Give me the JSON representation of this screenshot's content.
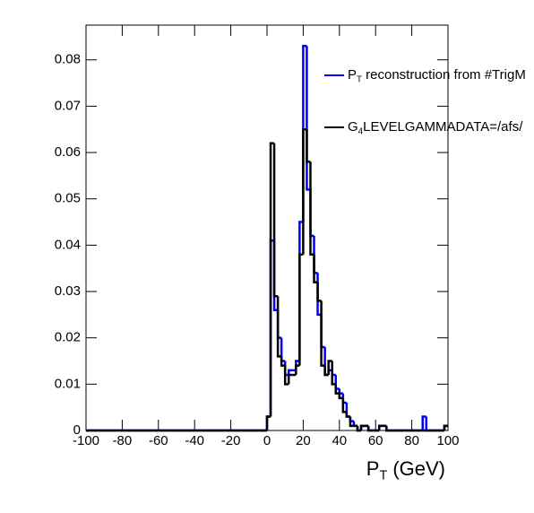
{
  "chart_data": {
    "type": "histogram",
    "xlabel": "PT (GeV)",
    "xlim": [
      -100,
      100
    ],
    "ylim": [
      0,
      0.0875
    ],
    "xticks": [
      -100,
      -80,
      -60,
      -40,
      -20,
      0,
      20,
      40,
      60,
      80,
      100
    ],
    "yticks": [
      0,
      0.01,
      0.02,
      0.03,
      0.04,
      0.05,
      0.06,
      0.07,
      0.08
    ],
    "bins": [
      -100,
      -98,
      -96,
      -94,
      -92,
      -90,
      -88,
      -86,
      -84,
      -82,
      -80,
      -78,
      -76,
      -74,
      -72,
      -70,
      -68,
      -66,
      -64,
      -62,
      -60,
      -58,
      -56,
      -54,
      -52,
      -50,
      -48,
      -46,
      -44,
      -42,
      -40,
      -38,
      -36,
      -34,
      -32,
      -30,
      -28,
      -26,
      -24,
      -22,
      -20,
      -18,
      -16,
      -14,
      -12,
      -10,
      -8,
      -6,
      -4,
      -2,
      0,
      2,
      4,
      6,
      8,
      10,
      12,
      14,
      16,
      18,
      20,
      22,
      24,
      26,
      28,
      30,
      32,
      34,
      36,
      38,
      40,
      42,
      44,
      46,
      48,
      50,
      52,
      54,
      56,
      58,
      60,
      62,
      64,
      66,
      68,
      70,
      72,
      74,
      76,
      78,
      80,
      82,
      84,
      86,
      88,
      90,
      92,
      94,
      96,
      98,
      100
    ],
    "series": [
      {
        "name": "PT reconstruction from #TrigM",
        "color": "#0000ff",
        "values": [
          0,
          0,
          0,
          0,
          0,
          0,
          0,
          0,
          0,
          0,
          0,
          0,
          0,
          0,
          0,
          0,
          0,
          0,
          0,
          0,
          0,
          0,
          0,
          0,
          0,
          0,
          0,
          0,
          0,
          0,
          0,
          0,
          0,
          0,
          0,
          0,
          0,
          0,
          0,
          0,
          0,
          0,
          0,
          0,
          0,
          0,
          0,
          0,
          0,
          0,
          0.003,
          0.041,
          0.026,
          0.02,
          0.015,
          0.012,
          0.013,
          0.013,
          0.015,
          0.045,
          0.083,
          0.052,
          0.042,
          0.034,
          0.025,
          0.018,
          0.012,
          0.013,
          0.012,
          0.009,
          0.008,
          0.006,
          0.003,
          0.002,
          0.001,
          0,
          0.001,
          0.001,
          0,
          0,
          0,
          0.001,
          0.001,
          0,
          0,
          0,
          0,
          0,
          0,
          0,
          0,
          0,
          0,
          0.003,
          0,
          0,
          0,
          0,
          0,
          0.001
        ]
      },
      {
        "name": "G4LEVELGAMMADATA=/afs/",
        "color": "#000000",
        "values": [
          0,
          0,
          0,
          0,
          0,
          0,
          0,
          0,
          0,
          0,
          0,
          0,
          0,
          0,
          0,
          0,
          0,
          0,
          0,
          0,
          0,
          0,
          0,
          0,
          0,
          0,
          0,
          0,
          0,
          0,
          0,
          0,
          0,
          0,
          0,
          0,
          0,
          0,
          0,
          0,
          0,
          0,
          0,
          0,
          0,
          0,
          0,
          0,
          0,
          0,
          0.003,
          0.062,
          0.029,
          0.016,
          0.014,
          0.01,
          0.012,
          0.012,
          0.014,
          0.038,
          0.065,
          0.058,
          0.038,
          0.032,
          0.028,
          0.014,
          0.012,
          0.015,
          0.01,
          0.008,
          0.007,
          0.004,
          0.003,
          0.001,
          0.001,
          0,
          0.001,
          0.001,
          0,
          0,
          0,
          0.001,
          0.001,
          0,
          0,
          0,
          0,
          0,
          0,
          0,
          0,
          0,
          0,
          0,
          0,
          0,
          0,
          0,
          0,
          0.001
        ]
      }
    ]
  }
}
